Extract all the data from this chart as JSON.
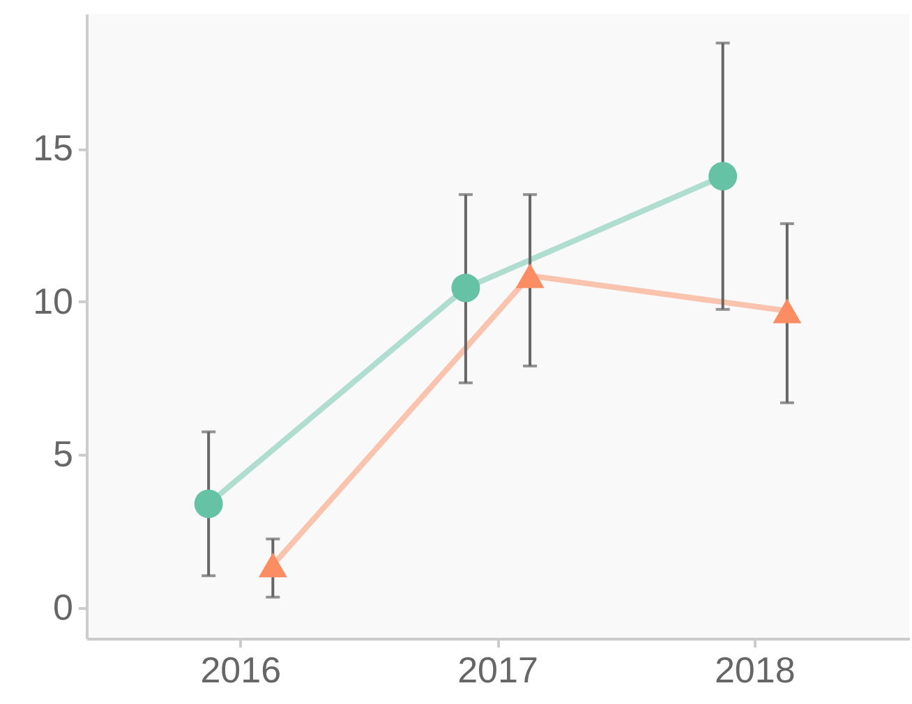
{
  "chart_data": {
    "type": "line",
    "categories": [
      "2016",
      "2017",
      "2018"
    ],
    "series": [
      {
        "color": "#66c2a5",
        "marker": "circle",
        "values": [
          3.4,
          10.45,
          14.1
        ],
        "errors": [
          [
            1.05,
            5.75
          ],
          [
            7.35,
            13.5
          ],
          [
            9.75,
            18.45
          ]
        ]
      },
      {
        "color": "#fc8d62",
        "marker": "triangle",
        "values": [
          1.4,
          10.85,
          9.7
        ],
        "errors": [
          [
            0.35,
            2.25
          ],
          [
            7.9,
            13.5
          ],
          [
            6.7,
            12.55
          ]
        ]
      }
    ],
    "ylim": [
      -1,
      19.4
    ],
    "yticks": [
      0,
      5,
      10,
      15
    ],
    "grid": false,
    "line_style": "solid"
  }
}
